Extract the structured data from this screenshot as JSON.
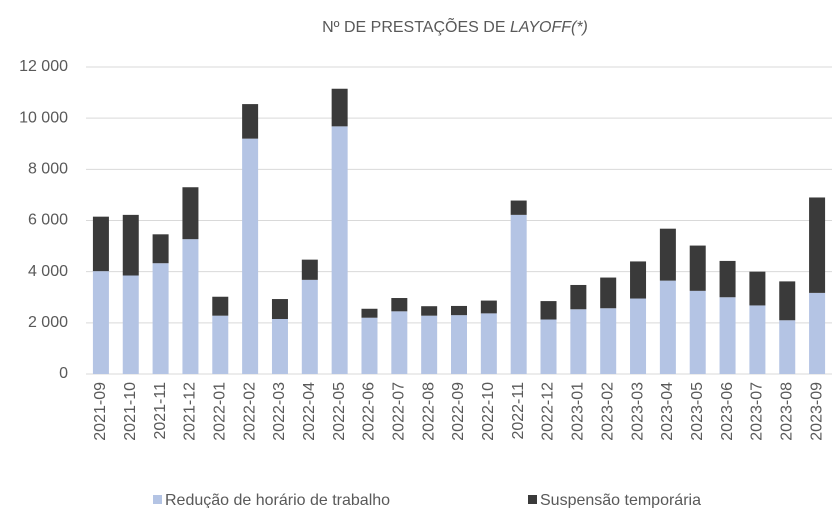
{
  "chart_data": {
    "type": "stacked_bar",
    "title": [
      "Nº DE PRESTAÇÕES DE ",
      "LAYOFF(*)"
    ],
    "categories": [
      "2021-09",
      "2021-10",
      "2021-11",
      "2021-12",
      "2022-01",
      "2022-02",
      "2022-03",
      "2022-04",
      "2022-05",
      "2022-06",
      "2022-07",
      "2022-08",
      "2022-09",
      "2022-10",
      "2022-11",
      "2022-12",
      "2023-01",
      "2023-02",
      "2023-03",
      "2023-04",
      "2023-05",
      "2023-06",
      "2023-07",
      "2023-08",
      "2023-09"
    ],
    "series": [
      {
        "name": "Redução de horário de trabalho",
        "color": "#b4c4e4",
        "values": [
          4020,
          3850,
          4330,
          5270,
          2280,
          9200,
          2150,
          3680,
          9680,
          2200,
          2450,
          2280,
          2300,
          2370,
          6220,
          2130,
          2530,
          2570,
          2950,
          3650,
          3250,
          3000,
          2680,
          2100,
          3170
        ]
      },
      {
        "name": "Suspensão temporária",
        "color": "#3a3a3a",
        "values": [
          2130,
          2370,
          1130,
          2030,
          740,
          1350,
          780,
          790,
          1470,
          350,
          520,
          370,
          360,
          500,
          560,
          720,
          950,
          1200,
          1450,
          2030,
          1770,
          1420,
          1320,
          1520,
          3730
        ]
      }
    ],
    "ylim": [
      0,
      12000
    ],
    "yticks": [
      0,
      {
        "value": 2000,
        "label": "2 000"
      },
      {
        "value": 4000,
        "label": "4 000"
      },
      {
        "value": 6000,
        "label": "6 000"
      },
      {
        "value": 8000,
        "label": "8 000"
      },
      {
        "value": 10000,
        "label": "10 000"
      },
      {
        "value": 12000,
        "label": "12 000"
      }
    ],
    "grid": true
  }
}
